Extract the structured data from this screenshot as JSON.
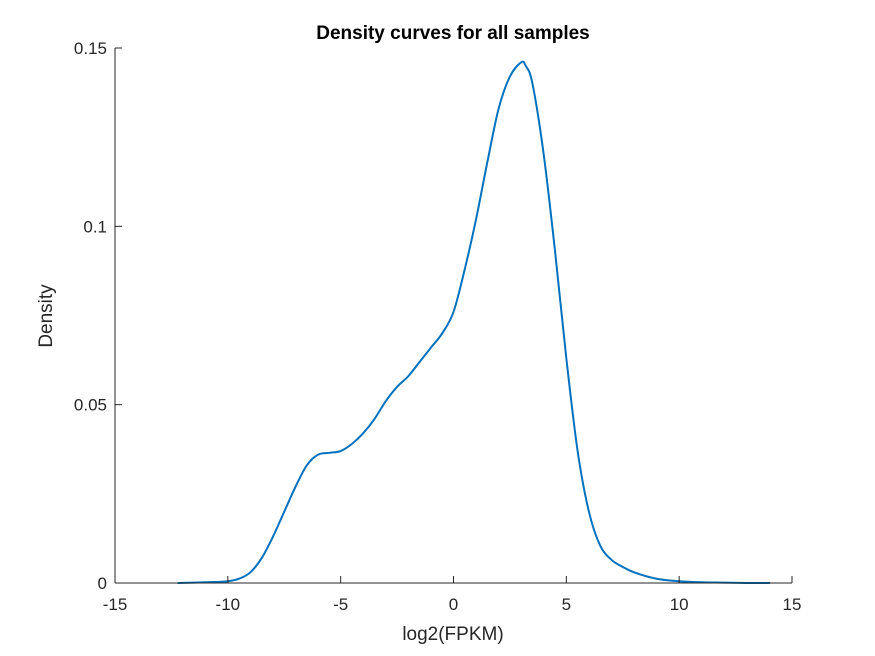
{
  "chart_data": {
    "type": "line",
    "title": "Density curves for all samples",
    "xlabel": "log2(FPKM)",
    "ylabel": "Density",
    "xlim": [
      -15,
      15
    ],
    "ylim": [
      0,
      0.15
    ],
    "xticks": [
      -15,
      -10,
      -5,
      0,
      5,
      10,
      15
    ],
    "xtick_labels": [
      "-15",
      "-10",
      "-5",
      "0",
      "5",
      "10",
      "15"
    ],
    "yticks": [
      0,
      0.05,
      0.1,
      0.15
    ],
    "ytick_labels": [
      "0",
      "0.05",
      "0.1",
      "0.15"
    ],
    "grid": false,
    "series": [
      {
        "color": "#0072BD",
        "x": [
          -12.2,
          -11.0,
          -10.0,
          -9.5,
          -9.0,
          -8.5,
          -8.0,
          -7.5,
          -7.0,
          -6.5,
          -6.0,
          -5.5,
          -5.0,
          -4.5,
          -4.0,
          -3.5,
          -3.0,
          -2.5,
          -2.0,
          -1.5,
          -1.0,
          -0.5,
          0.0,
          0.5,
          1.0,
          1.5,
          2.0,
          2.5,
          3.0,
          3.2,
          3.5,
          4.0,
          4.5,
          5.0,
          5.5,
          6.0,
          6.5,
          7.0,
          7.5,
          8.0,
          9.0,
          10.0,
          11.0,
          12.0,
          13.0,
          14.0
        ],
        "y": [
          0.0,
          0.0002,
          0.0005,
          0.0012,
          0.003,
          0.007,
          0.013,
          0.02,
          0.027,
          0.033,
          0.036,
          0.0365,
          0.037,
          0.039,
          0.042,
          0.046,
          0.051,
          0.055,
          0.058,
          0.062,
          0.066,
          0.07,
          0.076,
          0.088,
          0.102,
          0.118,
          0.133,
          0.142,
          0.146,
          0.145,
          0.14,
          0.12,
          0.093,
          0.063,
          0.037,
          0.02,
          0.0105,
          0.0065,
          0.0045,
          0.003,
          0.0012,
          0.0005,
          0.0002,
          0.0001,
          0.0,
          0.0
        ]
      }
    ]
  }
}
